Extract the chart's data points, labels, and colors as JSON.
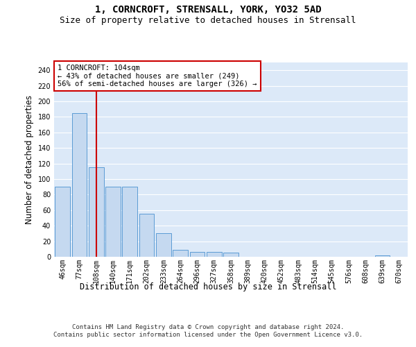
{
  "title_line1": "1, CORNCROFT, STRENSALL, YORK, YO32 5AD",
  "title_line2": "Size of property relative to detached houses in Strensall",
  "xlabel": "Distribution of detached houses by size in Strensall",
  "ylabel": "Number of detached properties",
  "categories": [
    "46sqm",
    "77sqm",
    "108sqm",
    "140sqm",
    "171sqm",
    "202sqm",
    "233sqm",
    "264sqm",
    "296sqm",
    "327sqm",
    "358sqm",
    "389sqm",
    "420sqm",
    "452sqm",
    "483sqm",
    "514sqm",
    "545sqm",
    "576sqm",
    "608sqm",
    "639sqm",
    "670sqm"
  ],
  "values": [
    90,
    185,
    115,
    90,
    90,
    55,
    30,
    9,
    6,
    6,
    5,
    0,
    0,
    0,
    0,
    0,
    0,
    0,
    0,
    2,
    0
  ],
  "bar_color": "#c5d9f0",
  "bar_edge_color": "#5b9bd5",
  "vline_x": 2,
  "vline_color": "#cc0000",
  "annotation_text": "1 CORNCROFT: 104sqm\n← 43% of detached houses are smaller (249)\n56% of semi-detached houses are larger (326) →",
  "annotation_box_color": "#ffffff",
  "annotation_box_edge": "#cc0000",
  "ylim": [
    0,
    250
  ],
  "yticks": [
    0,
    20,
    40,
    60,
    80,
    100,
    120,
    140,
    160,
    180,
    200,
    220,
    240
  ],
  "footer_text": "Contains HM Land Registry data © Crown copyright and database right 2024.\nContains public sector information licensed under the Open Government Licence v3.0.",
  "background_color": "#ffffff",
  "plot_bg_color": "#dce9f8",
  "grid_color": "#ffffff",
  "title_fontsize": 10,
  "subtitle_fontsize": 9,
  "axis_label_fontsize": 8.5,
  "tick_fontsize": 7,
  "annotation_fontsize": 7.5,
  "footer_fontsize": 6.5
}
